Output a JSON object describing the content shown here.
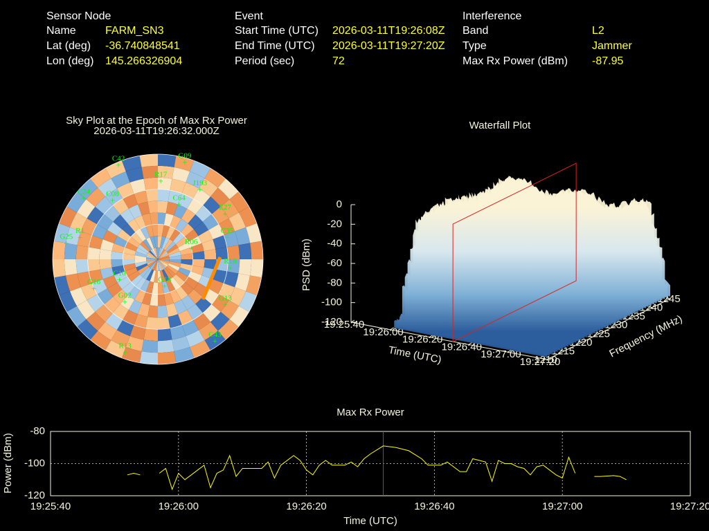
{
  "header": {
    "columns": [
      {
        "title": "Sensor Node",
        "rows": [
          {
            "label": "Name",
            "value": "FARM_SN3"
          },
          {
            "label": "Lat (deg)",
            "value": -36.740848541
          },
          {
            "label": "Lon (deg)",
            "value": 145.266326904
          }
        ]
      },
      {
        "title": "Event",
        "rows": [
          {
            "label": "Start Time (UTC)",
            "value": "2026-03-11T19:26:08Z"
          },
          {
            "label": "End Time (UTC)",
            "value": "2026-03-11T19:27:20Z"
          },
          {
            "label": "Period (sec)",
            "value": 72
          }
        ]
      },
      {
        "title": "Interference",
        "rows": [
          {
            "label": "Band",
            "value": "L2"
          },
          {
            "label": "Type",
            "value": "Jammer"
          },
          {
            "label": "Max Rx Power (dBm)",
            "value": -87.95
          }
        ]
      }
    ]
  },
  "chart_data": [
    {
      "type": "polar",
      "title": "Sky Plot at the Epoch of Max Rx Power",
      "subtitle": "2026-03-11T19:26:32.000Z",
      "satellites": [
        {
          "name": "C42",
          "azimuth": 338,
          "elevation": 0
        },
        {
          "name": "G09",
          "azimuth": 15,
          "elevation": 1
        },
        {
          "name": "R17",
          "azimuth": 2,
          "elevation": 20
        },
        {
          "name": "J193",
          "azimuth": 30,
          "elevation": 18
        },
        {
          "name": "C24",
          "azimuth": 311,
          "elevation": 6
        },
        {
          "name": "C08",
          "azimuth": 324,
          "elevation": 24
        },
        {
          "name": "C64",
          "azimuth": 20,
          "elevation": 37
        },
        {
          "name": "E27",
          "azimuth": 54,
          "elevation": 19
        },
        {
          "name": "C35",
          "azimuth": 70,
          "elevation": 27
        },
        {
          "name": "R06",
          "azimuth": 67,
          "elevation": 59
        },
        {
          "name": "G13",
          "azimuth": 122,
          "elevation": 22
        },
        {
          "name": "C43",
          "azimuth": 144,
          "elevation": 7
        },
        {
          "name": "R13",
          "azimuth": 200,
          "elevation": 8
        },
        {
          "name": "G16",
          "azimuth": 248,
          "elevation": 31
        },
        {
          "name": "C10",
          "azimuth": 246,
          "elevation": 54
        },
        {
          "name": "R1",
          "azimuth": 288,
          "elevation": 20
        },
        {
          "name": "G25",
          "azimuth": 282,
          "elevation": 10
        },
        {
          "name": "R18",
          "azimuth": 94,
          "elevation": 28
        },
        {
          "name": "G18",
          "azimuth": 164,
          "elevation": 69
        },
        {
          "name": "G02",
          "azimuth": 220,
          "elevation": 46
        }
      ]
    },
    {
      "type": "surface3d",
      "title": "Waterfall Plot",
      "zlabel": "PSD (dBm)",
      "zlim": [
        -120,
        0
      ],
      "zticks": [
        0,
        -20,
        -40,
        -60,
        -80,
        -100,
        -120
      ],
      "xlabel": "Time (UTC)",
      "xlim": [
        "19:25:40",
        "19:27:20"
      ],
      "xticks": [
        "19:25:40",
        "19:26:00",
        "19:26:20",
        "19:26:40",
        "19:27:00",
        "19:27:20"
      ],
      "ylabel": "Frequency (MHz)",
      "ylim": [
        1210,
        1245
      ],
      "yticks": [
        1210,
        1215,
        1220,
        1225,
        1230,
        1235,
        1240,
        1245
      ]
    },
    {
      "type": "line",
      "title": "Max Rx Power",
      "xlabel": "Time (UTC)",
      "ylabel": "Power (dBm)",
      "color": "#ffff00",
      "grid": true,
      "xlim": [
        "19:25:40",
        "19:27:20"
      ],
      "xticks": [
        "19:25:40",
        "19:26:00",
        "19:26:20",
        "19:26:40",
        "19:27:00",
        "19:27:20"
      ],
      "ylim": [
        -120,
        -80
      ],
      "yticks": [
        -80,
        -100,
        -120
      ],
      "x": [
        "19:25:52",
        "19:25:53",
        "19:25:54",
        "19:25:55",
        "19:25:57",
        "19:25:58",
        "19:25:59",
        "19:26:00",
        "19:26:01",
        "19:26:02",
        "19:26:03",
        "19:26:04",
        "19:26:05",
        "19:26:06",
        "19:26:07",
        "19:26:08",
        "19:26:09",
        "19:26:10",
        "19:26:11",
        "19:26:12",
        "19:26:13",
        "19:26:14",
        "19:26:15",
        "19:26:16",
        "19:26:18",
        "19:26:19",
        "19:26:20",
        "19:26:21",
        "19:26:22",
        "19:26:23",
        "19:26:24",
        "19:26:26",
        "19:26:27",
        "19:26:28",
        "19:26:29",
        "19:26:30",
        "19:26:32",
        "19:26:34",
        "19:26:36",
        "19:26:38",
        "19:26:39",
        "19:26:41",
        "19:26:42",
        "19:26:44",
        "19:26:45",
        "19:26:46",
        "19:26:48",
        "19:26:49",
        "19:26:50",
        "19:26:51",
        "19:26:52",
        "19:26:53",
        "19:26:54",
        "19:26:55",
        "19:26:56",
        "19:26:57",
        "19:26:59",
        "19:27:00",
        "19:27:01",
        "19:27:02",
        "19:27:03",
        "19:27:05",
        "19:27:06",
        "19:27:08",
        "19:27:09",
        "19:27:10"
      ],
      "values": [
        -107,
        -106,
        -107,
        null,
        -106,
        -103,
        -116,
        -106,
        -110,
        -107,
        -104,
        -101,
        -115,
        -106,
        -104,
        -95,
        -108,
        -103,
        -103,
        -103,
        -103,
        -99,
        -109,
        -101,
        -95,
        -98,
        -104,
        -107,
        -101,
        -98,
        -101,
        -101,
        -99,
        -102,
        -97,
        -94,
        -89,
        -90,
        -92,
        -97,
        -101,
        -101,
        -99,
        -105,
        -105,
        -97,
        -99,
        -111,
        -98,
        -100,
        -100,
        -102,
        -103,
        -107,
        -102,
        -101,
        -107,
        -109,
        -96,
        -106,
        null,
        -108,
        -108,
        -107.5,
        -108,
        -110
      ]
    }
  ]
}
